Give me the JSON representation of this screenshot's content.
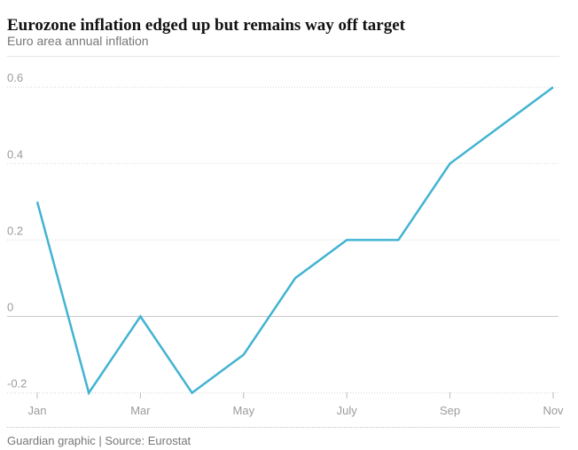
{
  "header": {
    "title": "Eurozone inflation edged up but remains way off target",
    "subtitle": "Euro area annual inflation"
  },
  "chart_data": {
    "type": "line",
    "title": "Euro area annual inflation",
    "x": [
      "Jan",
      "Feb",
      "Mar",
      "Apr",
      "May",
      "Jun",
      "Jul",
      "Aug",
      "Sep",
      "Oct",
      "Nov"
    ],
    "values": [
      0.3,
      -0.2,
      0.0,
      -0.2,
      -0.1,
      0.1,
      0.2,
      0.2,
      0.4,
      0.5,
      0.6
    ],
    "x_tick_labels": [
      "Jan",
      "Mar",
      "May",
      "July",
      "Sep",
      "Nov"
    ],
    "x_tick_month_indices": [
      0,
      2,
      4,
      6,
      8,
      10
    ],
    "y_ticks": [
      -0.2,
      0,
      0.2,
      0.4,
      0.6
    ],
    "y_tick_labels": [
      "-0.2",
      "0",
      "0.2",
      "0.4",
      "0.6"
    ],
    "ylim": [
      -0.26,
      0.68
    ],
    "xlabel": "",
    "ylabel": "",
    "grid": "horizontal-dotted, solid zero line",
    "legend": "none",
    "line_color": "#42b3d2"
  },
  "footer": {
    "credit": "Guardian graphic | Source: Eurostat"
  },
  "colors": {
    "background": "#ffffff",
    "title_text": "#121212",
    "subtitle_text": "#767676",
    "axis_label_text": "#9b9b9b",
    "gridline_dotted": "#d6d6d6",
    "zero_line": "#c9c9c9",
    "tick_mark": "#bbbbbb",
    "accent_line": "#42b3d2",
    "footer_text": "#767676"
  }
}
